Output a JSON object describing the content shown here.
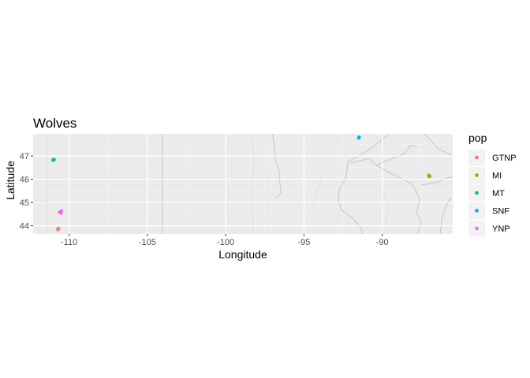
{
  "chart_data": {
    "type": "scatter",
    "title": "Wolves",
    "xlabel": "Longitude",
    "ylabel": "Latitude",
    "xlim": [
      -112.3,
      -85.5
    ],
    "ylim": [
      43.65,
      47.95
    ],
    "x_ticks": [
      -110,
      -105,
      -100,
      -95,
      -90
    ],
    "x_tick_labels": [
      "-110",
      "-105",
      "-100",
      "-95",
      "-90"
    ],
    "y_ticks": [
      44,
      45,
      46,
      47
    ],
    "y_tick_labels": [
      "44",
      "45",
      "46",
      "47"
    ],
    "grid": true,
    "basemap": "grey state borders and roads",
    "legend": {
      "title": "pop",
      "position": "right"
    },
    "series": [
      {
        "name": "GTNP",
        "color": "#F8766D",
        "points": [
          [
            -110.7,
            43.86
          ],
          [
            -110.68,
            43.88
          ],
          [
            -110.72,
            43.84
          ]
        ]
      },
      {
        "name": "MI",
        "color": "#A3A500",
        "points": [
          [
            -87.0,
            46.14
          ],
          [
            -87.02,
            46.16
          ],
          [
            -86.98,
            46.12
          ]
        ]
      },
      {
        "name": "MT",
        "color": "#00BF7D",
        "points": [
          [
            -111.0,
            46.84
          ],
          [
            -110.97,
            46.85
          ],
          [
            -111.02,
            46.82
          ]
        ]
      },
      {
        "name": "SNF",
        "color": "#00B0F6",
        "points": [
          [
            -91.5,
            47.78
          ],
          [
            -91.48,
            47.8
          ]
        ]
      },
      {
        "name": "YNP",
        "color": "#E76BF3",
        "points": [
          [
            -110.55,
            44.6
          ],
          [
            -110.5,
            44.63
          ],
          [
            -110.6,
            44.58
          ],
          [
            -110.52,
            44.55
          ]
        ]
      }
    ]
  }
}
